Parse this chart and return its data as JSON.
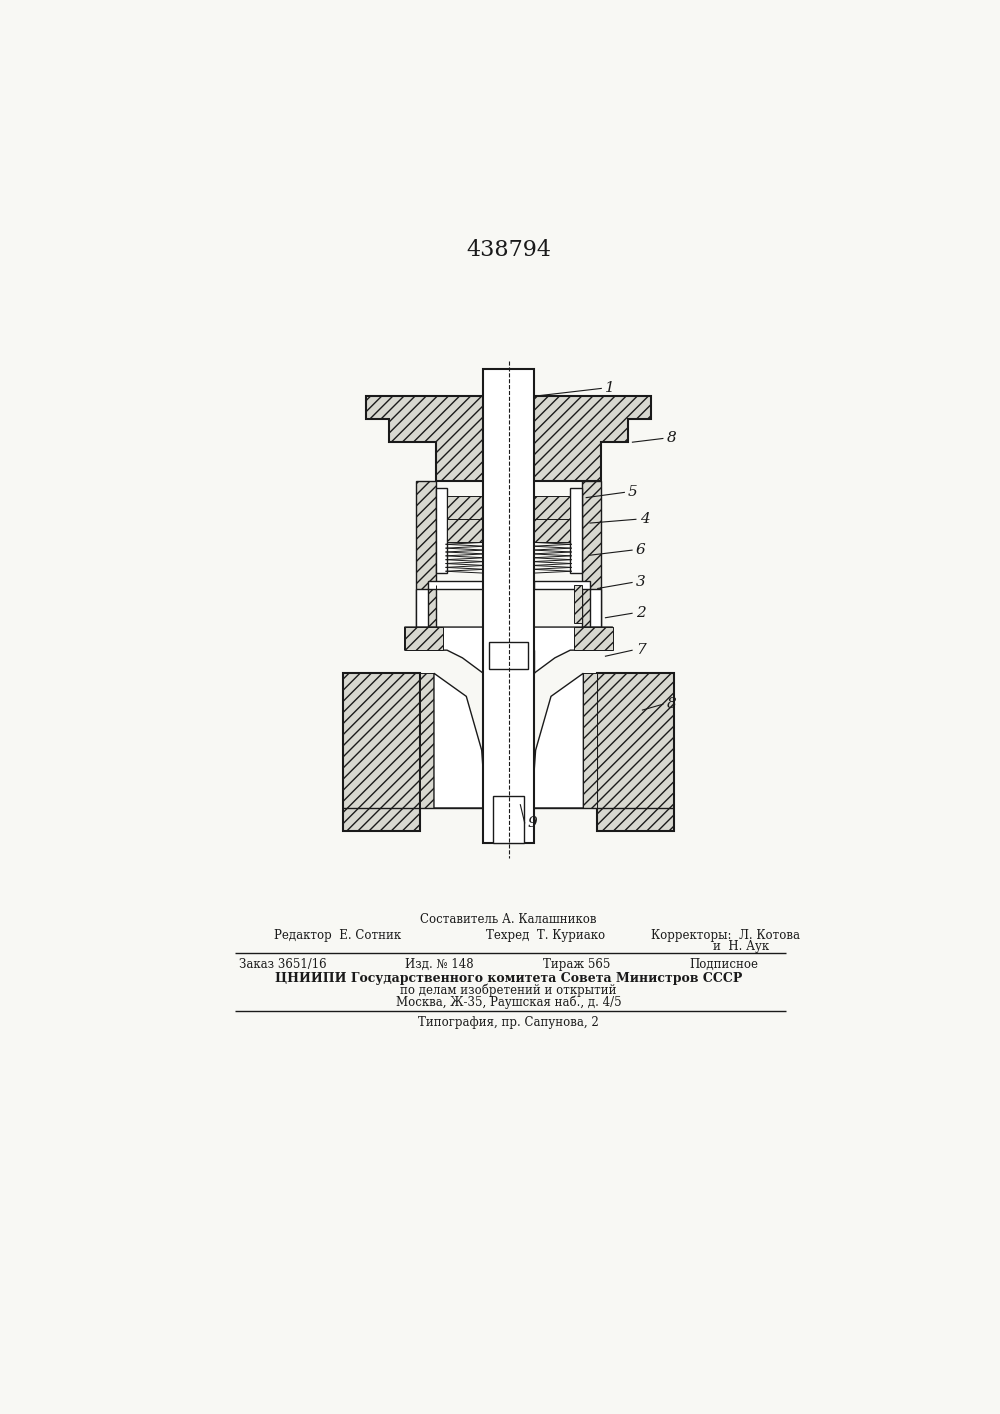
{
  "title_number": "438794",
  "bg": "#f8f8f4",
  "lc": "#1a1a1a",
  "hc": "#c8c8c8",
  "footer": [
    "Составитель А. Калашников",
    "Редактор  Е. Сотник",
    "Техред  Т. Куриако",
    "Корректоры:  Л. Котова",
    "и  Н. Аук",
    "Заказ 3651/16",
    "Изд. № 148",
    "Тираж 565",
    "Подписное",
    "ЦНИИПИ Государственного комитета Совета Министров СССР",
    "по делам изобретений и открытий",
    "Москва, Ж-35, Раушская наб., д. 4/5",
    "Типография, пр. Сапунова, 2"
  ]
}
